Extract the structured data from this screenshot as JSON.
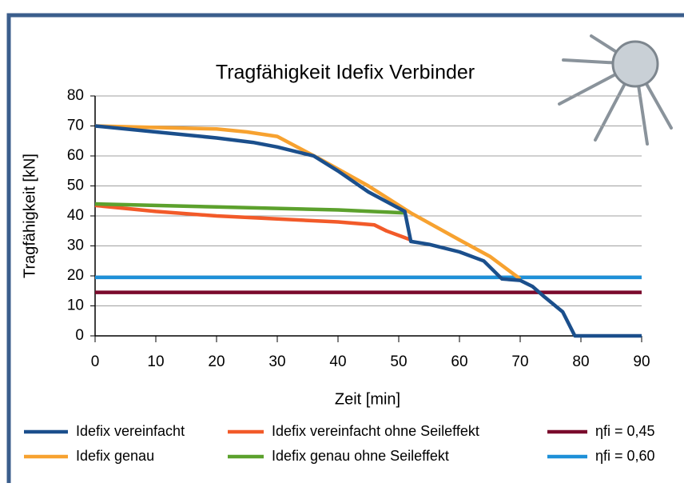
{
  "chart_data": {
    "type": "line",
    "title": "Tragfähigkeit Idefix Verbinder",
    "xlabel": "Zeit [min]",
    "ylabel": "Tragfähigkeit [kN]",
    "xlim": [
      0,
      90
    ],
    "xticks": [
      0,
      10,
      20,
      30,
      40,
      50,
      60,
      70,
      80,
      90
    ],
    "ylim": [
      0,
      80
    ],
    "yticks": [
      0,
      10,
      20,
      30,
      40,
      50,
      60,
      70,
      80
    ],
    "grid": true,
    "legend": "bottom",
    "series": [
      {
        "name": "Idefix vereinfacht",
        "color": "#1b4f8c",
        "x": [
          0,
          10,
          20,
          26,
          30,
          36,
          40,
          45,
          51,
          52,
          55,
          60,
          64,
          67,
          70,
          72,
          74,
          77,
          78,
          79,
          90
        ],
        "values": [
          70,
          68,
          66,
          64.5,
          63,
          60,
          55,
          48,
          41.5,
          31.5,
          30.5,
          28,
          25,
          19,
          18.5,
          16.5,
          13,
          8,
          4,
          0,
          0
        ]
      },
      {
        "name": "Idefix vereinfacht ohne Seileffekt",
        "color": "#f25a29",
        "x": [
          0,
          10,
          20,
          30,
          40,
          46,
          48,
          52
        ],
        "values": [
          43.5,
          41.5,
          40,
          39,
          38,
          37,
          35,
          32
        ]
      },
      {
        "name": "ηfi = 0,45",
        "color": "#7a0a2c",
        "x": [
          0,
          90
        ],
        "values": [
          14.5,
          14.5
        ]
      },
      {
        "name": "Idefix genau",
        "color": "#f7a230",
        "x": [
          0,
          20,
          25,
          30,
          37,
          45,
          52,
          60,
          65,
          70
        ],
        "values": [
          70,
          69,
          68,
          66.5,
          59,
          50,
          41,
          32,
          26.5,
          19
        ]
      },
      {
        "name": "Idefix genau ohne Seileffekt",
        "color": "#5ca12d",
        "x": [
          0,
          20,
          40,
          51
        ],
        "values": [
          44,
          43,
          42,
          41
        ]
      },
      {
        "name": "ηfi = 0,60",
        "color": "#1e90d8",
        "x": [
          0,
          90
        ],
        "values": [
          19.5,
          19.5
        ]
      }
    ]
  }
}
